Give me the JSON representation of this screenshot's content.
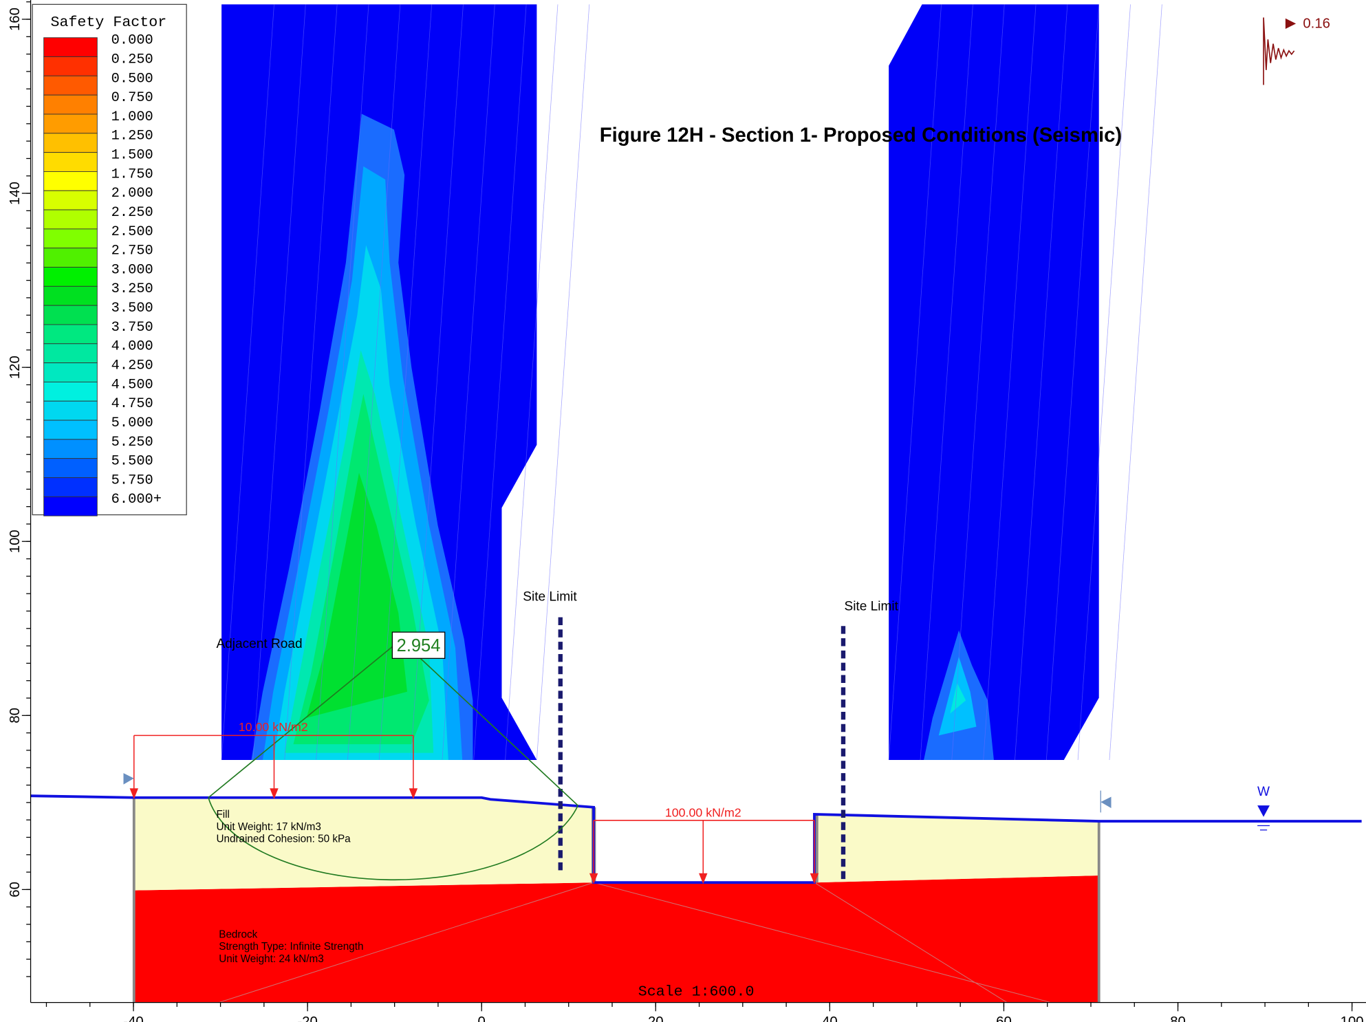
{
  "title": "Figure 12H - Section 1- Proposed Conditions (Seismic)",
  "legend": {
    "title": "Safety Factor",
    "items": [
      {
        "label": "0.000",
        "color": "#ff0000"
      },
      {
        "label": "0.250",
        "color": "#ff3000"
      },
      {
        "label": "0.500",
        "color": "#ff5a00"
      },
      {
        "label": "0.750",
        "color": "#ff8000"
      },
      {
        "label": "1.000",
        "color": "#ff9c00"
      },
      {
        "label": "1.250",
        "color": "#ffc000"
      },
      {
        "label": "1.500",
        "color": "#ffdc00"
      },
      {
        "label": "1.750",
        "color": "#ffff00"
      },
      {
        "label": "2.000",
        "color": "#d8ff00"
      },
      {
        "label": "2.250",
        "color": "#b0ff00"
      },
      {
        "label": "2.500",
        "color": "#80ff00"
      },
      {
        "label": "2.750",
        "color": "#50f000"
      },
      {
        "label": "3.000",
        "color": "#00f000"
      },
      {
        "label": "3.250",
        "color": "#00e020"
      },
      {
        "label": "3.500",
        "color": "#00e050"
      },
      {
        "label": "3.750",
        "color": "#00e880"
      },
      {
        "label": "4.000",
        "color": "#00e8a0"
      },
      {
        "label": "4.250",
        "color": "#00e8c0"
      },
      {
        "label": "4.500",
        "color": "#00f0e0"
      },
      {
        "label": "4.750",
        "color": "#00d8f0"
      },
      {
        "label": "5.000",
        "color": "#00c0ff"
      },
      {
        "label": "5.250",
        "color": "#0090ff"
      },
      {
        "label": "5.500",
        "color": "#0060ff"
      },
      {
        "label": "5.750",
        "color": "#0030ff"
      },
      {
        "label": "6.000+",
        "color": "#0000ff"
      }
    ]
  },
  "axes": {
    "x_ticks": [
      -40,
      -20,
      0,
      20,
      40,
      60,
      80,
      100
    ],
    "y_ticks": [
      60,
      80,
      100,
      120,
      140,
      160
    ]
  },
  "annotations": {
    "site_limit_left": "Site Limit",
    "site_limit_right": "Site Limit",
    "adjacent_road": "Adjacent Road",
    "safety_factor": "2.954",
    "load_left": "10.00 kN/m2",
    "load_pit": "100.00 kN/m2",
    "seismic": "0.16",
    "water": "W",
    "scale": "Scale 1:600.0"
  },
  "materials": {
    "fill": [
      "Fill",
      "Unit Weight: 17 kN/m3",
      "Undrained Cohesion: 50 kPa"
    ],
    "bedrock": [
      "Bedrock",
      "Strength Type: Infinite Strength",
      "Unit Weight: 24 kN/m3"
    ]
  }
}
